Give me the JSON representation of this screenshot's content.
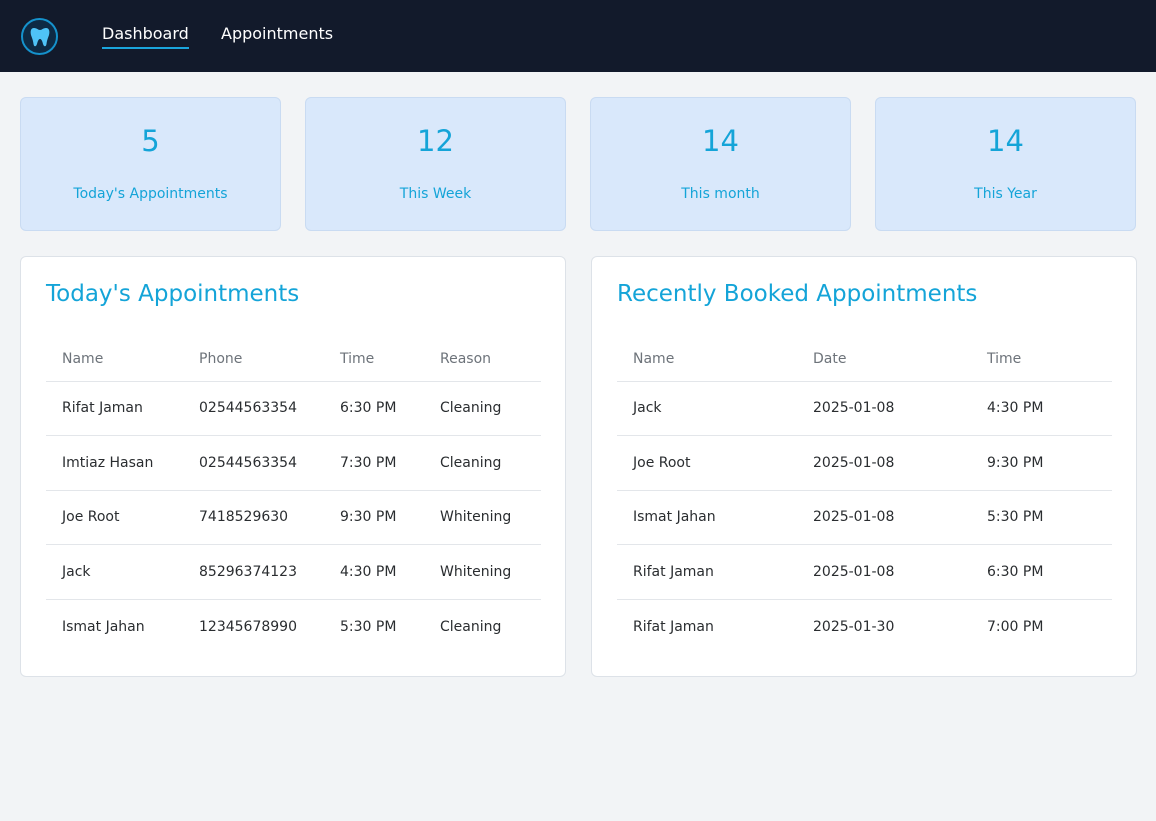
{
  "nav": {
    "logo_icon": "tooth-icon",
    "links": [
      {
        "label": "Dashboard",
        "active": true
      },
      {
        "label": "Appointments",
        "active": false
      }
    ]
  },
  "colors": {
    "navbar": "#121a2b",
    "accent": "#14a4d8",
    "stat_card_bg": "#d9e8fb",
    "page_bg": "#f2f4f6"
  },
  "stats": [
    {
      "value": "5",
      "label": "Today's Appointments"
    },
    {
      "value": "12",
      "label": "This Week"
    },
    {
      "value": "14",
      "label": "This month"
    },
    {
      "value": "14",
      "label": "This Year"
    }
  ],
  "today": {
    "title": "Today's Appointments",
    "columns": [
      "Name",
      "Phone",
      "Time",
      "Reason"
    ],
    "rows": [
      [
        "Rifat Jaman",
        "02544563354",
        "6:30 PM",
        "Cleaning"
      ],
      [
        "Imtiaz Hasan",
        "02544563354",
        "7:30 PM",
        "Cleaning"
      ],
      [
        "Joe Root",
        "7418529630",
        "9:30 PM",
        "Whitening"
      ],
      [
        "Jack",
        "85296374123",
        "4:30 PM",
        "Whitening"
      ],
      [
        "Ismat Jahan",
        "12345678990",
        "5:30 PM",
        "Cleaning"
      ]
    ]
  },
  "recent": {
    "title": "Recently Booked Appointments",
    "columns": [
      "Name",
      "Date",
      "Time"
    ],
    "rows": [
      [
        "Jack",
        "2025-01-08",
        "4:30 PM"
      ],
      [
        "Joe Root",
        "2025-01-08",
        "9:30 PM"
      ],
      [
        "Ismat Jahan",
        "2025-01-08",
        "5:30 PM"
      ],
      [
        "Rifat Jaman",
        "2025-01-08",
        "6:30 PM"
      ],
      [
        "Rifat Jaman",
        "2025-01-30",
        "7:00 PM"
      ]
    ]
  }
}
